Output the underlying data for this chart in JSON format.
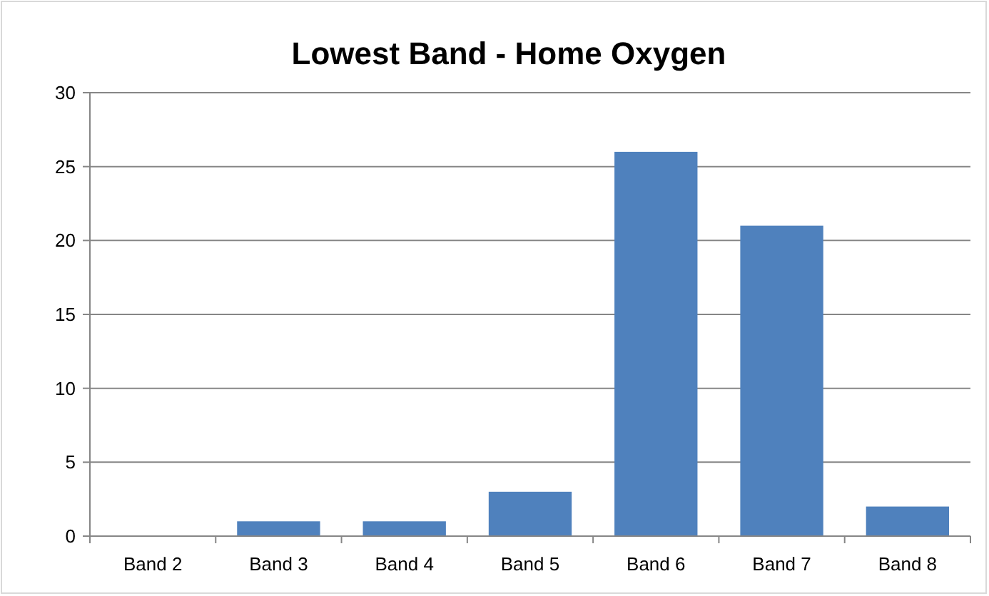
{
  "chart_data": {
    "type": "bar",
    "title": "Lowest Band - Home Oxygen",
    "categories": [
      "Band 2",
      "Band 3",
      "Band 4",
      "Band 5",
      "Band 6",
      "Band 7",
      "Band 8"
    ],
    "values": [
      0,
      1,
      1,
      3,
      26,
      21,
      2
    ],
    "color": "#4f81bd",
    "ylim": [
      0,
      30
    ],
    "yticks": [
      0,
      5,
      10,
      15,
      20,
      25,
      30
    ],
    "grid": "y"
  }
}
